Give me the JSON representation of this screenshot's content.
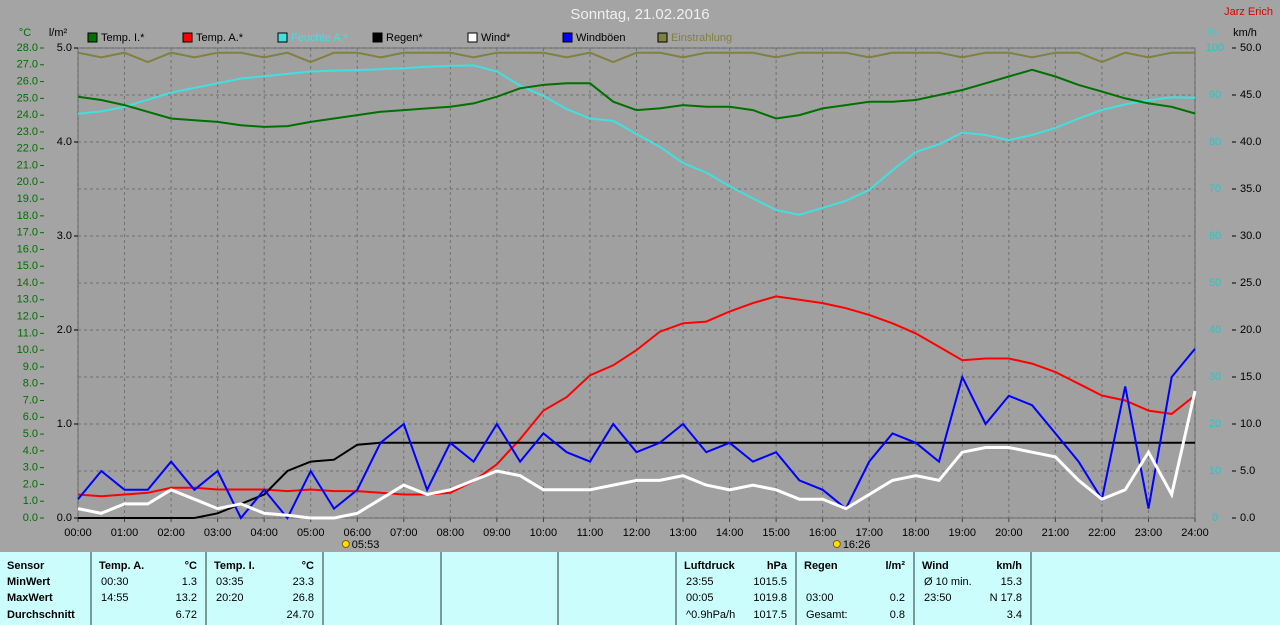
{
  "chart_data": {
    "type": "line",
    "title": "Sonntag, 21.02.2016",
    "author": "Jarz Erich",
    "y_label": "°C",
    "y2_label": "l/m²",
    "y3_label": "%",
    "y4_label": "km/h",
    "grid": true,
    "x": [
      0,
      0.5,
      1,
      1.5,
      2,
      2.5,
      3,
      3.5,
      4,
      4.5,
      5,
      5.5,
      6,
      6.5,
      7,
      7.5,
      8,
      8.5,
      9,
      9.5,
      10,
      10.5,
      11,
      11.5,
      12,
      12.5,
      13,
      13.5,
      14,
      14.5,
      15,
      15.5,
      16,
      16.5,
      17,
      17.5,
      18,
      18.5,
      19,
      19.5,
      20,
      20.5,
      21,
      21.5,
      22,
      22.5,
      23,
      23.5,
      24
    ],
    "xlim": [
      0,
      24
    ],
    "xticks": [
      {
        "value": 0,
        "label": "00:00"
      },
      {
        "value": 1,
        "label": "01:00"
      },
      {
        "value": 2,
        "label": "02:00"
      },
      {
        "value": 3,
        "label": "03:00"
      },
      {
        "value": 4,
        "label": "04:00"
      },
      {
        "value": 5,
        "label": "05:00"
      },
      {
        "value": 6,
        "label": "06:00"
      },
      {
        "value": 7,
        "label": "07:00"
      },
      {
        "value": 8,
        "label": "08:00"
      },
      {
        "value": 9,
        "label": "09:00"
      },
      {
        "value": 10,
        "label": "10:00"
      },
      {
        "value": 11,
        "label": "11:00"
      },
      {
        "value": 12,
        "label": "12:00"
      },
      {
        "value": 13,
        "label": "13:00"
      },
      {
        "value": 14,
        "label": "14:00"
      },
      {
        "value": 15,
        "label": "15:00"
      },
      {
        "value": 16,
        "label": "16:00"
      },
      {
        "value": 17,
        "label": "17:00"
      },
      {
        "value": 18,
        "label": "18:00"
      },
      {
        "value": 19,
        "label": "19:00"
      },
      {
        "value": 20,
        "label": "20:00"
      },
      {
        "value": 21,
        "label": "21:00"
      },
      {
        "value": 22,
        "label": "22:00"
      },
      {
        "value": 23,
        "label": "23:00"
      },
      {
        "value": 24,
        "label": "24:00"
      }
    ],
    "ylim": [
      0,
      28
    ],
    "yticks": [
      {
        "value": 0,
        "label": "0.0"
      },
      {
        "value": 1,
        "label": "1.0"
      },
      {
        "value": 2,
        "label": "2.0"
      },
      {
        "value": 3,
        "label": "3.0"
      },
      {
        "value": 4,
        "label": "4.0"
      },
      {
        "value": 5,
        "label": "5.0"
      },
      {
        "value": 6,
        "label": "6.0"
      },
      {
        "value": 7,
        "label": "7.0"
      },
      {
        "value": 8,
        "label": "8.0"
      },
      {
        "value": 9,
        "label": "9.0"
      },
      {
        "value": 10,
        "label": "10.0"
      },
      {
        "value": 11,
        "label": "11.0"
      },
      {
        "value": 12,
        "label": "12.0"
      },
      {
        "value": 13,
        "label": "13.0"
      },
      {
        "value": 14,
        "label": "14.0"
      },
      {
        "value": 15,
        "label": "15.0"
      },
      {
        "value": 16,
        "label": "16.0"
      },
      {
        "value": 17,
        "label": "17.0"
      },
      {
        "value": 18,
        "label": "18.0"
      },
      {
        "value": 19,
        "label": "19.0"
      },
      {
        "value": 20,
        "label": "20.0"
      },
      {
        "value": 21,
        "label": "21.0"
      },
      {
        "value": 22,
        "label": "22.0"
      },
      {
        "value": 23,
        "label": "23.0"
      },
      {
        "value": 24,
        "label": "24.0"
      },
      {
        "value": 25,
        "label": "25.0"
      },
      {
        "value": 26,
        "label": "26.0"
      },
      {
        "value": 27,
        "label": "27.0"
      },
      {
        "value": 28,
        "label": "28.0"
      }
    ],
    "y2lim": [
      0,
      5
    ],
    "y2ticks": [
      {
        "value": 0,
        "label": "0.0"
      },
      {
        "value": 1,
        "label": "1.0"
      },
      {
        "value": 2,
        "label": "2.0"
      },
      {
        "value": 3,
        "label": "3.0"
      },
      {
        "value": 4,
        "label": "4.0"
      },
      {
        "value": 5,
        "label": "5.0"
      }
    ],
    "y3lim": [
      0,
      100
    ],
    "y3ticks": [
      0,
      10,
      20,
      30,
      40,
      50,
      60,
      70,
      80,
      90,
      100
    ],
    "y4lim": [
      0,
      50
    ],
    "y4ticks": [
      {
        "value": 0,
        "label": "0.0"
      },
      {
        "value": 5,
        "label": "5.0"
      },
      {
        "value": 10,
        "label": "10.0"
      },
      {
        "value": 15,
        "label": "15.0"
      },
      {
        "value": 20,
        "label": "20.0"
      },
      {
        "value": 25,
        "label": "25.0"
      },
      {
        "value": 30,
        "label": "30.0"
      },
      {
        "value": 35,
        "label": "35.0"
      },
      {
        "value": 40,
        "label": "40.0"
      },
      {
        "value": 45,
        "label": "45.0"
      },
      {
        "value": 50,
        "label": "50.0"
      }
    ],
    "series": [
      {
        "name": "Temp. I.*",
        "color": "#007000",
        "axis": "y",
        "values": [
          25.1,
          24.9,
          24.6,
          24.2,
          23.8,
          23.7,
          23.6,
          23.4,
          23.3,
          23.35,
          23.6,
          23.8,
          24.0,
          24.2,
          24.3,
          24.4,
          24.5,
          24.7,
          25.1,
          25.6,
          25.8,
          25.9,
          25.9,
          24.8,
          24.3,
          24.4,
          24.6,
          24.5,
          24.5,
          24.3,
          23.8,
          24.0,
          24.4,
          24.6,
          24.8,
          24.8,
          24.9,
          25.2,
          25.5,
          25.9,
          26.3,
          26.7,
          26.3,
          25.8,
          25.4,
          25.0,
          24.7,
          24.5,
          24.1
        ]
      },
      {
        "name": "Temp. A.*",
        "color": "#ff0000",
        "axis": "y",
        "values": [
          1.4,
          1.3,
          1.4,
          1.5,
          1.8,
          1.8,
          1.7,
          1.7,
          1.7,
          1.6,
          1.7,
          1.6,
          1.6,
          1.5,
          1.4,
          1.4,
          1.5,
          2.2,
          3.2,
          4.7,
          6.4,
          7.2,
          8.5,
          9.1,
          10.0,
          11.1,
          11.6,
          11.7,
          12.3,
          12.8,
          13.2,
          13.0,
          12.8,
          12.5,
          12.1,
          11.6,
          11.0,
          10.2,
          9.4,
          9.5,
          9.5,
          9.2,
          8.7,
          8.0,
          7.3,
          7.0,
          6.4,
          6.2,
          7.3
        ]
      },
      {
        "name": "Feuchte A.*",
        "color": "#40e0e0",
        "axis": "y3",
        "values": [
          86,
          86.5,
          87.5,
          89,
          90.5,
          91.5,
          92.5,
          93.5,
          94,
          94.5,
          95,
          95.2,
          95.3,
          95.5,
          95.7,
          96,
          96.2,
          96.3,
          95,
          92,
          89.8,
          87,
          85,
          84.5,
          81.7,
          79,
          75.5,
          73.5,
          70.6,
          68,
          65.5,
          64.5,
          66,
          67.5,
          69.8,
          74,
          77.9,
          79.5,
          82,
          81.5,
          80.4,
          81.5,
          83,
          85,
          86.8,
          88,
          88.9,
          89.5,
          89.4
        ]
      },
      {
        "name": "Regen*",
        "color": "#000000",
        "axis": "y2",
        "values": [
          0,
          0,
          0,
          0,
          0,
          0,
          0.05,
          0.15,
          0.25,
          0.5,
          0.6,
          0.62,
          0.78,
          0.8,
          0.8,
          0.8,
          0.8,
          0.8,
          0.8,
          0.8,
          0.8,
          0.8,
          0.8,
          0.8,
          0.8,
          0.8,
          0.8,
          0.8,
          0.8,
          0.8,
          0.8,
          0.8,
          0.8,
          0.8,
          0.8,
          0.8,
          0.8,
          0.8,
          0.8,
          0.8,
          0.8,
          0.8,
          0.8,
          0.8,
          0.8,
          0.8,
          0.8,
          0.8,
          0.8
        ]
      },
      {
        "name": "Wind*",
        "color": "#ffffff",
        "axis": "y4",
        "values": [
          1,
          0.5,
          1.5,
          1.5,
          3,
          2,
          1,
          1.5,
          0.5,
          0.3,
          0,
          0,
          0.5,
          2,
          3.5,
          2.5,
          3,
          4,
          5,
          4.5,
          3,
          3,
          3,
          3.5,
          4,
          4,
          4.5,
          3.5,
          3,
          3.5,
          3,
          2,
          2,
          1,
          2.5,
          4,
          4.5,
          4,
          7,
          7.5,
          7.5,
          7,
          6.5,
          4,
          2,
          3,
          7,
          2.5,
          13.5
        ]
      },
      {
        "name": "Windböen",
        "color": "#0000ff",
        "axis": "y4",
        "values": [
          2,
          5,
          3,
          3,
          6,
          3,
          5,
          0,
          3,
          0,
          5,
          1,
          3,
          8,
          10,
          3,
          8,
          6,
          10,
          6,
          9,
          7,
          6,
          10,
          7,
          8,
          10,
          7,
          8,
          6,
          7,
          4,
          3,
          1,
          6,
          9,
          8,
          6,
          15,
          10,
          13,
          12,
          9,
          6,
          2,
          14,
          1,
          15,
          18
        ]
      },
      {
        "name": "Einstrahlung",
        "color": "#808040",
        "axis": "y3",
        "values": [
          99,
          98,
          99,
          97,
          99,
          98,
          99,
          99,
          98,
          99,
          97,
          99,
          99,
          98,
          99,
          99,
          99,
          98,
          99,
          99,
          99,
          98,
          99,
          97,
          99,
          99,
          98,
          99,
          99,
          99,
          98,
          99,
          99,
          99,
          98,
          99,
          99,
          99,
          98,
          99,
          99,
          98,
          99,
          99,
          97,
          99,
          98,
          99,
          99
        ]
      }
    ],
    "annotations": [
      {
        "x": 5.883,
        "label": "05:53"
      },
      {
        "x": 16.433,
        "label": "16:26"
      }
    ]
  },
  "table": {
    "sensor_header": "Sensor",
    "row_labels": [
      "MinWert",
      "MaxWert",
      "Durchschnitt"
    ],
    "groups": [
      {
        "name": "Temp. A.",
        "unit": "°C",
        "rows": [
          [
            "00:30",
            "1.3"
          ],
          [
            "14:55",
            "13.2"
          ],
          [
            null,
            "6.72"
          ]
        ]
      },
      {
        "name": "Temp. I.",
        "unit": "°C",
        "rows": [
          [
            "03:35",
            "23.3"
          ],
          [
            "20:20",
            "26.8"
          ],
          [
            null,
            "24.70"
          ]
        ]
      },
      {
        "name": "Luftdruck",
        "unit": "hPa",
        "rows": [
          [
            "23:55",
            "1015.5"
          ],
          [
            "00:05",
            "1019.8"
          ],
          [
            "^0.9hPa/h",
            "1017.5"
          ]
        ]
      },
      {
        "name": "Regen",
        "unit": "l/m²",
        "rows": [
          [
            null,
            null
          ],
          [
            "03:00",
            "0.2"
          ],
          [
            "Gesamt:",
            "0.8"
          ]
        ]
      },
      {
        "name": "Wind",
        "unit": "km/h",
        "rows": [
          [
            "Ø 10 min.",
            "15.3"
          ],
          [
            "23:50",
            "N 17.8"
          ],
          [
            null,
            "3.4"
          ]
        ]
      }
    ]
  }
}
